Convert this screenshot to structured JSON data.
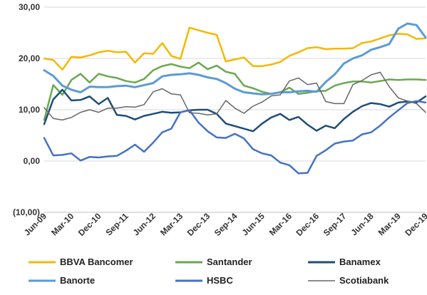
{
  "chart_data": {
    "type": "line",
    "title": "",
    "xlabel": "",
    "ylabel": "",
    "ylim": [
      -10,
      30
    ],
    "y_ticks": [
      -10,
      0,
      10,
      20,
      30
    ],
    "y_tick_labels": [
      "(10,00)",
      "0,00",
      "10,00",
      "20,00",
      "30,00"
    ],
    "x_tick_labels": [
      "Jun-09",
      "Mar-10",
      "Dec-10",
      "Sep-11",
      "Jun-12",
      "Mar-13",
      "Dec-13",
      "Sep-14",
      "Jun-15",
      "Mar-16",
      "Dec-16",
      "Sep-17",
      "Jun-18",
      "Mar-19",
      "Dec-19"
    ],
    "grid": "horizontal",
    "legend_position": "bottom",
    "x": [
      "Jun-09",
      "Sep-09",
      "Dec-09",
      "Mar-10",
      "Jun-10",
      "Sep-10",
      "Dec-10",
      "Mar-11",
      "Jun-11",
      "Sep-11",
      "Dec-11",
      "Mar-12",
      "Jun-12",
      "Sep-12",
      "Dec-12",
      "Mar-13",
      "Jun-13",
      "Sep-13",
      "Dec-13",
      "Mar-14",
      "Jun-14",
      "Sep-14",
      "Dec-14",
      "Mar-15",
      "Jun-15",
      "Sep-15",
      "Dec-15",
      "Mar-16",
      "Jun-16",
      "Sep-16",
      "Dec-16",
      "Mar-17",
      "Jun-17",
      "Sep-17",
      "Dec-17",
      "Mar-18",
      "Jun-18",
      "Sep-18",
      "Dec-18",
      "Mar-19",
      "Jun-19",
      "Sep-19",
      "Dec-19"
    ],
    "series": [
      {
        "name": "BBVA Bancomer",
        "color": "#F5B800",
        "width": 2.5,
        "values": [
          20.0,
          19.7,
          17.8,
          20.3,
          20.2,
          20.6,
          21.2,
          21.5,
          21.2,
          21.3,
          19.2,
          21.0,
          20.9,
          23.0,
          20.5,
          19.9,
          26.0,
          25.5,
          25.0,
          24.6,
          19.4,
          19.8,
          20.2,
          18.5,
          18.5,
          18.8,
          19.3,
          20.5,
          21.2,
          22.0,
          22.2,
          21.8,
          21.9,
          21.9,
          22.0,
          23.0,
          23.3,
          23.9,
          24.5,
          24.8,
          24.7,
          23.8,
          23.9
        ]
      },
      {
        "name": "Santander",
        "color": "#6AA84F",
        "width": 2.5,
        "values": [
          8.0,
          14.8,
          12.9,
          15.8,
          17.0,
          15.3,
          17.0,
          16.5,
          16.2,
          15.6,
          15.3,
          16.0,
          17.7,
          18.5,
          18.9,
          18.4,
          18.1,
          19.2,
          17.9,
          18.6,
          17.4,
          17.0,
          14.7,
          14.2,
          13.5,
          13.1,
          13.4,
          14.3,
          13.1,
          13.3,
          13.6,
          13.7,
          14.7,
          15.2,
          15.5,
          15.5,
          15.3,
          15.6,
          15.9,
          15.8,
          15.9,
          15.9,
          15.8
        ]
      },
      {
        "name": "Banamex",
        "color": "#1F4E79",
        "width": 2.5,
        "values": [
          7.2,
          12.0,
          13.9,
          11.8,
          11.9,
          12.6,
          11.1,
          12.3,
          9.0,
          8.8,
          8.1,
          8.8,
          9.2,
          9.6,
          9.4,
          9.5,
          9.9,
          10.0,
          10.0,
          9.2,
          7.3,
          6.8,
          6.3,
          5.8,
          7.3,
          8.5,
          9.2,
          8.0,
          8.6,
          7.1,
          5.9,
          6.9,
          6.4,
          8.2,
          9.6,
          10.7,
          11.3,
          11.1,
          10.6,
          11.4,
          11.6,
          11.4,
          12.6
        ]
      },
      {
        "name": "Banorte",
        "color": "#5B9BD5",
        "width": 3,
        "values": [
          17.7,
          16.6,
          14.7,
          13.9,
          13.4,
          14.5,
          14.4,
          14.4,
          14.6,
          14.7,
          14.4,
          14.8,
          15.2,
          16.5,
          16.8,
          16.9,
          17.1,
          16.8,
          16.3,
          16.0,
          15.2,
          14.1,
          13.4,
          13.2,
          13.0,
          13.1,
          13.4,
          13.4,
          13.6,
          13.7,
          13.5,
          15.4,
          16.9,
          19.0,
          20.0,
          20.6,
          21.7,
          22.2,
          22.8,
          25.8,
          26.8,
          26.5,
          24.1
        ]
      },
      {
        "name": "HSBC",
        "color": "#4472C4",
        "width": 2.5,
        "values": [
          4.5,
          1.1,
          1.2,
          1.5,
          0.1,
          0.8,
          0.7,
          0.9,
          1.0,
          2.0,
          3.2,
          1.8,
          3.6,
          5.6,
          6.3,
          9.5,
          9.9,
          7.5,
          5.8,
          4.6,
          4.5,
          5.3,
          4.4,
          2.3,
          1.5,
          1.1,
          -0.3,
          -0.8,
          -2.4,
          -2.3,
          1.0,
          2.1,
          3.4,
          3.8,
          4.0,
          5.2,
          5.6,
          6.9,
          8.5,
          9.9,
          11.3,
          11.7,
          11.4
        ]
      },
      {
        "name": "Scotiabank",
        "color": "#666666",
        "width": 1.5,
        "values": [
          10.4,
          8.3,
          8.0,
          8.5,
          9.5,
          10.0,
          9.5,
          10.3,
          10.3,
          10.6,
          10.5,
          11.0,
          13.5,
          14.1,
          13.1,
          12.9,
          9.4,
          9.3,
          9.0,
          9.2,
          11.8,
          10.3,
          9.3,
          10.7,
          11.5,
          12.7,
          12.9,
          15.6,
          16.2,
          14.9,
          15.2,
          11.6,
          11.2,
          11.2,
          14.9,
          15.7,
          16.8,
          17.3,
          14.5,
          12.3,
          11.7,
          11.2,
          9.5
        ]
      }
    ]
  },
  "legend": [
    {
      "name": "BBVA Bancomer",
      "color": "#F5B800"
    },
    {
      "name": "Santander",
      "color": "#6AA84F"
    },
    {
      "name": "Banamex",
      "color": "#1F4E79"
    },
    {
      "name": "Banorte",
      "color": "#5B9BD5"
    },
    {
      "name": "HSBC",
      "color": "#4472C4"
    },
    {
      "name": "Scotiabank",
      "color": "#666666"
    }
  ]
}
